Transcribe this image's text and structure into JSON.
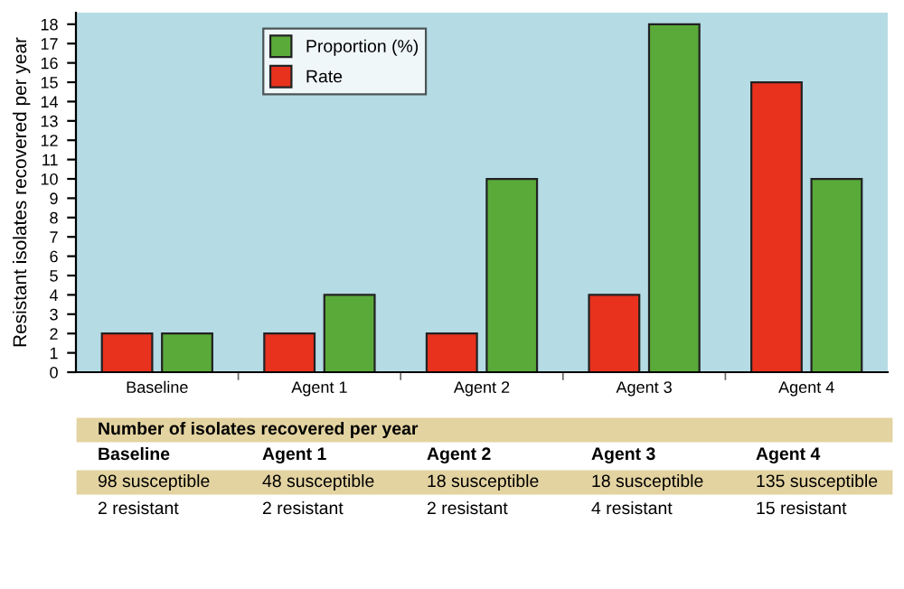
{
  "chart_data": {
    "type": "bar",
    "ylabel": "Resistant isolates recovered per year",
    "categories": [
      "Baseline",
      "Agent 1",
      "Agent 2",
      "Agent 3",
      "Agent 4"
    ],
    "series": [
      {
        "name": "Rate",
        "color": "#e8321e",
        "values": [
          2,
          2,
          2,
          4,
          15
        ]
      },
      {
        "name": "Proportion (%)",
        "color": "#5aaa3a",
        "values": [
          2,
          4,
          10,
          18,
          10
        ]
      }
    ],
    "ylim": [
      0,
      18.6
    ],
    "yticks": [
      0,
      1,
      2,
      3,
      4,
      5,
      6,
      7,
      8,
      9,
      10,
      11,
      12,
      13,
      14,
      15,
      16,
      17,
      18
    ],
    "grid": false,
    "legend": "top left",
    "annotations": [
      "Number of isolates recovered per year",
      "Baseline",
      "Agent 1",
      "Agent 2",
      "Agent 3",
      "Agent 4",
      "98 susceptible",
      "48 susceptible",
      "18 susceptible",
      "18 susceptible",
      "135 susceptible",
      "2 resistant",
      "2 resistant",
      "2 resistant",
      "4 resistant",
      "15 resistant"
    ]
  }
}
